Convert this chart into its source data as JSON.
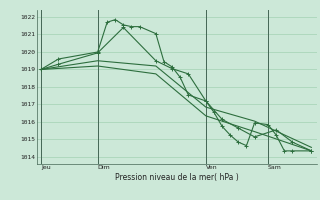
{
  "bg_color": "#cce8d8",
  "grid_color": "#99ccaa",
  "line_color": "#2d6e3e",
  "title": "Pression niveau de la mer( hPa )",
  "ylabel_ticks": [
    1014,
    1015,
    1016,
    1017,
    1018,
    1019,
    1020,
    1021,
    1022
  ],
  "ylim": [
    1013.6,
    1022.4
  ],
  "day_labels": [
    "Jeu",
    "Dim",
    "Ven",
    "Sam"
  ],
  "day_positions": [
    0.0,
    0.21,
    0.61,
    0.84
  ],
  "series1": {
    "x": [
      0.0,
      0.065,
      0.21,
      0.245,
      0.275,
      0.305,
      0.335,
      0.365,
      0.425,
      0.455,
      0.485,
      0.515,
      0.545,
      0.61,
      0.64,
      0.67,
      0.7,
      0.73,
      0.76,
      0.79,
      0.84,
      0.87,
      0.9,
      0.93,
      1.0
    ],
    "y": [
      1019.0,
      1019.6,
      1020.0,
      1021.7,
      1021.85,
      1021.55,
      1021.45,
      1021.45,
      1021.05,
      1019.45,
      1019.15,
      1018.55,
      1017.55,
      1017.2,
      1016.55,
      1015.75,
      1015.25,
      1014.85,
      1014.65,
      1015.95,
      1015.85,
      1015.25,
      1014.35,
      1014.35,
      1014.35
    ]
  },
  "series2": {
    "x": [
      0.0,
      0.065,
      0.21,
      0.305,
      0.425,
      0.485,
      0.545,
      0.61,
      0.67,
      0.73,
      0.79,
      0.87,
      0.93,
      1.0
    ],
    "y": [
      1019.0,
      1019.3,
      1019.95,
      1021.4,
      1019.5,
      1019.05,
      1018.75,
      1017.2,
      1016.15,
      1015.65,
      1015.15,
      1015.55,
      1014.85,
      1014.35
    ]
  },
  "series3": {
    "x": [
      0.0,
      0.21,
      0.425,
      0.61,
      0.79,
      1.0
    ],
    "y": [
      1019.0,
      1019.5,
      1019.2,
      1016.85,
      1016.05,
      1014.55
    ]
  },
  "series4": {
    "x": [
      0.0,
      0.21,
      0.425,
      0.61,
      0.79,
      1.0
    ],
    "y": [
      1019.0,
      1019.2,
      1018.75,
      1016.35,
      1015.45,
      1014.35
    ]
  },
  "xlim": [
    -0.015,
    1.02
  ]
}
